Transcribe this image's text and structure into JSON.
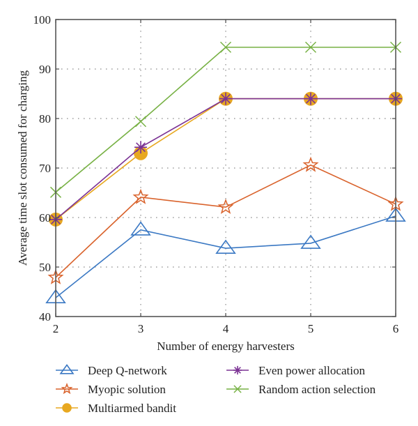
{
  "chart_data": {
    "type": "line",
    "title": "",
    "xlabel": "Number of energy harvesters",
    "ylabel": "Average time slot consumed for charging",
    "x": [
      2,
      3,
      4,
      5,
      6
    ],
    "xlim": [
      2,
      6
    ],
    "ylim": [
      40,
      100
    ],
    "xticks": [
      "2",
      "3",
      "4",
      "5",
      "6"
    ],
    "yticks": [
      "40",
      "50",
      "60",
      "70",
      "80",
      "90",
      "100"
    ],
    "xtick_values": [
      2,
      3,
      4,
      5,
      6
    ],
    "ytick_values": [
      40,
      50,
      60,
      70,
      80,
      90,
      100
    ],
    "grid": true,
    "legend_position": "bottom",
    "series": [
      {
        "name": "Deep Q-network",
        "color": "#3a78c3",
        "marker": "triangle",
        "values": [
          43.8,
          57.5,
          53.8,
          54.8,
          60.3
        ]
      },
      {
        "name": "Myopic solution",
        "color": "#d9622b",
        "marker": "star",
        "values": [
          47.9,
          64.1,
          62.1,
          70.6,
          62.7
        ]
      },
      {
        "name": "Multiarmed bandit",
        "color": "#e8a820",
        "marker": "circle",
        "values": [
          59.6,
          73.0,
          84.0,
          84.0,
          84.0
        ]
      },
      {
        "name": "Even power allocation",
        "color": "#7b3294",
        "marker": "asterisk",
        "values": [
          59.6,
          74.2,
          84.0,
          84.0,
          84.0
        ]
      },
      {
        "name": "Random action selection",
        "color": "#77b144",
        "marker": "x",
        "values": [
          65.1,
          79.4,
          94.4,
          94.4,
          94.4
        ]
      }
    ]
  }
}
